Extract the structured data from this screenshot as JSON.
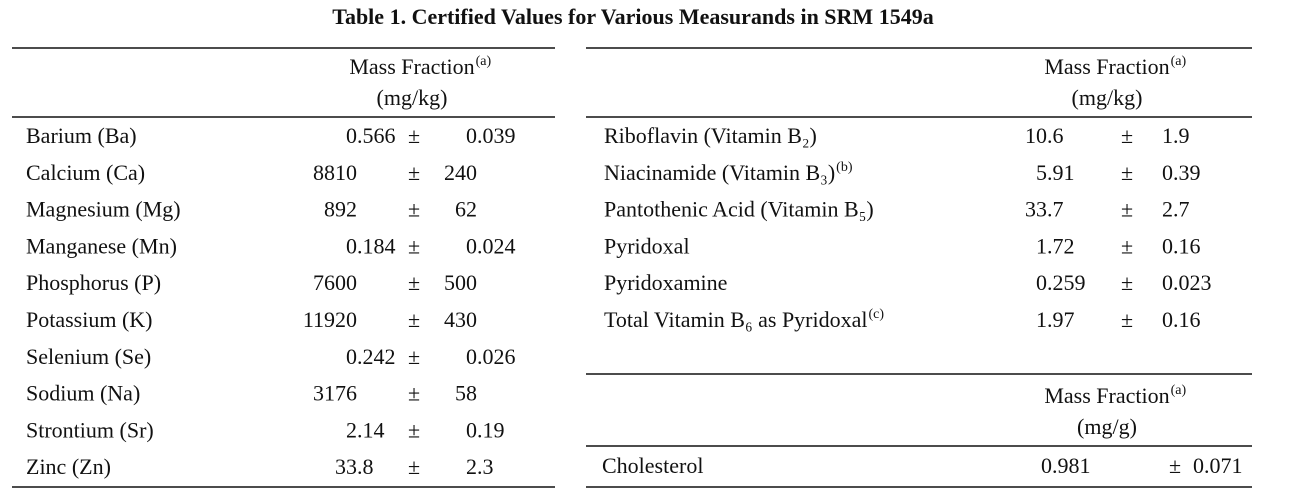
{
  "title": "Table 1.  Certified Values for Various Measurands in SRM 1549a",
  "plus_minus": "±",
  "left_table": {
    "header": {
      "label": "Mass Fraction",
      "note": "(a)",
      "unit": "(mg/kg)"
    },
    "rows": [
      {
        "name": "Barium (Ba)",
        "value": "0.566",
        "uncertainty": "0.039"
      },
      {
        "name": "Calcium (Ca)",
        "value": "8810",
        "uncertainty": "240"
      },
      {
        "name": "Magnesium (Mg)",
        "value": "892",
        "uncertainty": "62"
      },
      {
        "name": "Manganese (Mn)",
        "value": "0.184",
        "uncertainty": "0.024"
      },
      {
        "name": "Phosphorus (P)",
        "value": "7600",
        "uncertainty": "500"
      },
      {
        "name": "Potassium (K)",
        "value": "11920",
        "uncertainty": "430"
      },
      {
        "name": "Selenium (Se)",
        "value": "0.242",
        "uncertainty": "0.026"
      },
      {
        "name": "Sodium (Na)",
        "value": "3176",
        "uncertainty": "58"
      },
      {
        "name": "Strontium (Sr)",
        "value": "2.14",
        "uncertainty": "0.19"
      },
      {
        "name": "Zinc (Zn)",
        "value": "33.8",
        "uncertainty": "2.3"
      }
    ]
  },
  "right_table": {
    "header": {
      "label": "Mass Fraction",
      "note": "(a)",
      "unit": "(mg/kg)"
    },
    "rows": [
      {
        "name": "Riboflavin (Vitamin B₂)",
        "value": "10.6",
        "uncertainty": "1.9"
      },
      {
        "name": "Niacinamide (Vitamin B₃)",
        "note": "(b)",
        "value": "5.91",
        "uncertainty": "0.39"
      },
      {
        "name": "Pantothenic Acid (Vitamin B₅)",
        "value": "33.7",
        "uncertainty": "2.7"
      },
      {
        "name": "Pyridoxal",
        "value": "1.72",
        "uncertainty": "0.16"
      },
      {
        "name": "Pyridoxamine",
        "value": "0.259",
        "uncertainty": "0.023"
      },
      {
        "name": "Total Vitamin B₆ as Pyridoxal",
        "note": "(c)",
        "value": "1.97",
        "uncertainty": "0.16"
      }
    ]
  },
  "lower_right_table": {
    "header": {
      "label": "Mass Fraction",
      "note": "(a)",
      "unit": "(mg/g)"
    },
    "rows": [
      {
        "name": "Cholesterol",
        "value": "0.981",
        "uncertainty": "0.071"
      }
    ]
  }
}
